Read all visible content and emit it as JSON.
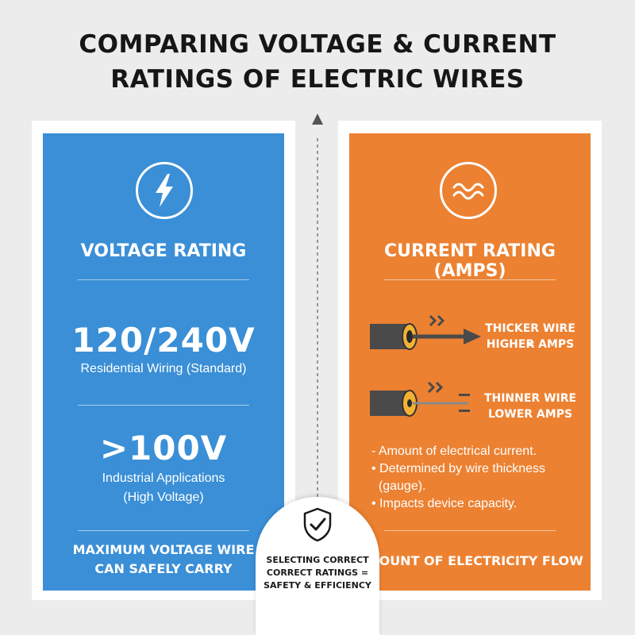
{
  "title": {
    "line1": "COMPARING VOLTAGE & CURRENT",
    "line2": "RATINGS OF ELECTRIC WIRES"
  },
  "colors": {
    "voltage_panel": "#3a8fd6",
    "current_panel": "#ec8131",
    "text_light": "#ffffff",
    "text_dark": "#161616"
  },
  "voltage": {
    "icon": "lightning-bolt-icon",
    "heading": "VOLTAGE RATING",
    "value1": "120/240V",
    "desc1": "Residential Wiring (Standard)",
    "value2": ">100V",
    "desc2_line1": "Industrial Applications",
    "desc2_line2": "(High Voltage)",
    "footer_line1": "MAXIMUM VOLTAGE WIRE",
    "footer_line2": "CAN SAFELY CARRY"
  },
  "current": {
    "icon": "wave-current-icon",
    "heading": "CURRENT RATING (AMPS)",
    "thick_label_line1": "THICKER WIRE =",
    "thick_label_line2": "HIGHER AMPS",
    "thin_label_line1": "THINNER WIRE",
    "thin_label_line2": "LOWER AMPS",
    "bullets": [
      "- Amount of electrical current.",
      "• Determined by wire thickness",
      "  (gauge).",
      "• Impacts device capacity."
    ],
    "footer": "AMOUNT OF ELECTRICITY FLOW"
  },
  "badge": {
    "icon": "shield-check-icon",
    "line1": "SELECTING CORRECT",
    "line2": "CORRECT RATINGS =",
    "line3": "SAFETY & EFFICIENCY"
  }
}
